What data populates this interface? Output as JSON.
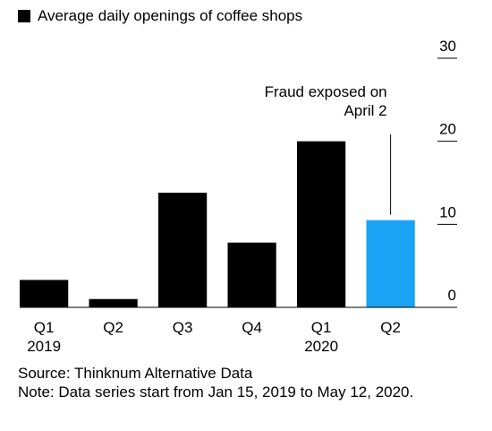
{
  "legend": {
    "label": "Average daily openings of coffee shops",
    "color": "#000000"
  },
  "chart_data": {
    "type": "bar",
    "categories": [
      "Q1\n2019",
      "Q2",
      "Q3",
      "Q4",
      "Q1\n2020",
      "Q2"
    ],
    "values": [
      3.3,
      1.0,
      13.8,
      7.8,
      20.0,
      10.5
    ],
    "bar_colors": [
      "#000000",
      "#000000",
      "#000000",
      "#000000",
      "#000000",
      "#1aa3f5"
    ],
    "ylim": [
      0,
      30
    ],
    "yticks": [
      0,
      10,
      20,
      30
    ],
    "yaxis_position": "right",
    "annotation": {
      "text": [
        "Fraud exposed on",
        "April 2"
      ],
      "target_index": 5
    },
    "title": "",
    "xlabel": "",
    "ylabel": ""
  },
  "footer": {
    "source": "Source: Thinknum Alternative Data",
    "note": "Note: Data series start from Jan 15, 2019 to May 12, 2020."
  }
}
